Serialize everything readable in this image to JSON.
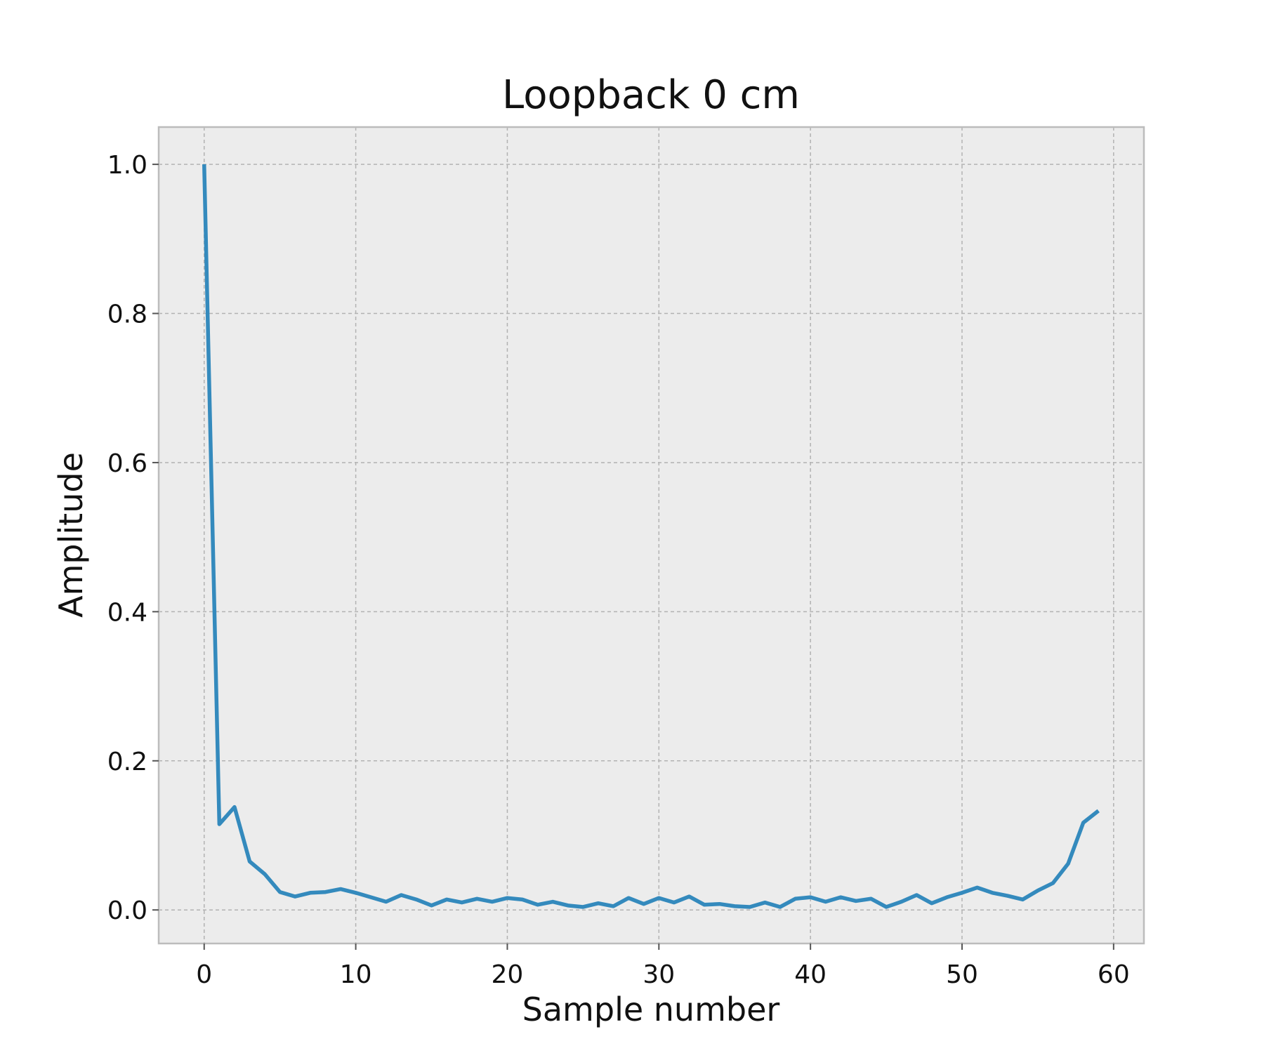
{
  "chart_data": {
    "type": "line",
    "title": "Loopback 0 cm",
    "xlabel": "Sample number",
    "ylabel": "Amplitude",
    "xlim": [
      -3,
      62
    ],
    "ylim": [
      -0.045,
      1.05
    ],
    "xticks": [
      0,
      10,
      20,
      30,
      40,
      50,
      60
    ],
    "yticks": [
      0.0,
      0.2,
      0.4,
      0.6,
      0.8,
      1.0
    ],
    "xtick_labels": [
      "0",
      "10",
      "20",
      "30",
      "40",
      "50",
      "60"
    ],
    "ytick_labels": [
      "0.0",
      "0.2",
      "0.4",
      "0.6",
      "0.8",
      "1.0"
    ],
    "grid": true,
    "background": "#ececec",
    "series": [
      {
        "color": "#348abd",
        "x": [
          0,
          1,
          2,
          3,
          4,
          5,
          6,
          7,
          8,
          9,
          10,
          11,
          12,
          13,
          14,
          15,
          16,
          17,
          18,
          19,
          20,
          21,
          22,
          23,
          24,
          25,
          26,
          27,
          28,
          29,
          30,
          31,
          32,
          33,
          34,
          35,
          36,
          37,
          38,
          39,
          40,
          41,
          42,
          43,
          44,
          45,
          46,
          47,
          48,
          49,
          50,
          51,
          52,
          53,
          54,
          55,
          56,
          57,
          58,
          59
        ],
        "y": [
          1.0,
          0.115,
          0.138,
          0.065,
          0.048,
          0.024,
          0.018,
          0.023,
          0.024,
          0.028,
          0.023,
          0.017,
          0.011,
          0.02,
          0.014,
          0.006,
          0.014,
          0.01,
          0.015,
          0.011,
          0.016,
          0.014,
          0.007,
          0.011,
          0.006,
          0.004,
          0.009,
          0.005,
          0.016,
          0.008,
          0.016,
          0.01,
          0.018,
          0.007,
          0.008,
          0.005,
          0.004,
          0.01,
          0.004,
          0.015,
          0.017,
          0.011,
          0.017,
          0.012,
          0.015,
          0.004,
          0.011,
          0.02,
          0.009,
          0.017,
          0.023,
          0.03,
          0.023,
          0.019,
          0.014,
          0.026,
          0.036,
          0.062,
          0.117,
          0.133
        ]
      }
    ]
  }
}
